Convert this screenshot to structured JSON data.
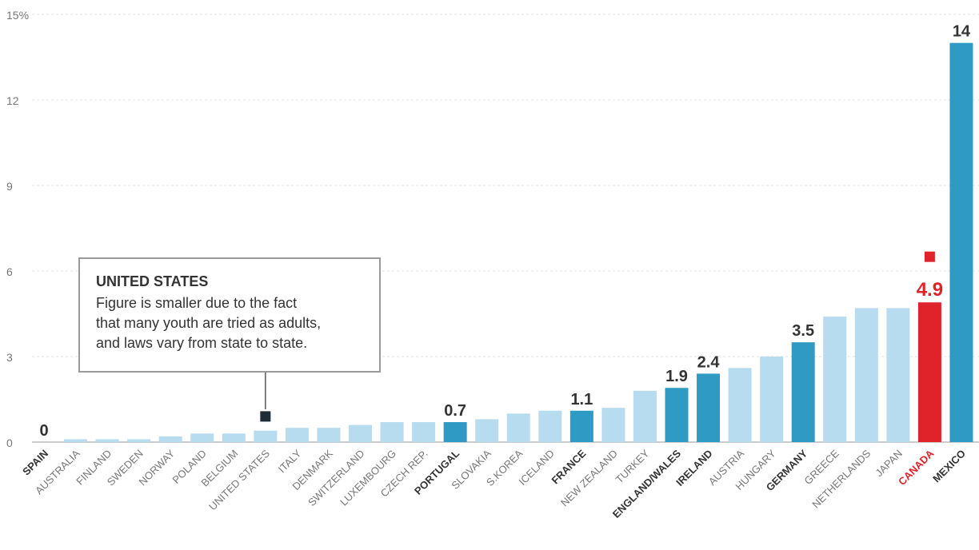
{
  "chart_data": {
    "type": "bar",
    "categories": [
      "SPAIN",
      "AUSTRALIA",
      "FINLAND",
      "SWEDEN",
      "NORWAY",
      "POLAND",
      "BELGIUM",
      "UNITED STATES",
      "ITALY",
      "DENMARK",
      "SWITZERLAND",
      "LUXEMBOURG",
      "CZECH REP.",
      "PORTUGAL",
      "SLOVAKIA",
      "S.KOREA",
      "ICELAND",
      "FRANCE",
      "NEW ZEALAND",
      "TURKEY",
      "ENGLAND/WALES",
      "IRELAND",
      "AUSTRIA",
      "HUNGARY",
      "GERMANY",
      "GREECE",
      "NETHERLANDS",
      "JAPAN",
      "CANADA",
      "MEXICO"
    ],
    "values": [
      0,
      0.1,
      0.1,
      0.1,
      0.2,
      0.3,
      0.3,
      0.4,
      0.5,
      0.5,
      0.6,
      0.7,
      0.7,
      0.7,
      0.8,
      1.0,
      1.1,
      1.1,
      1.2,
      1.8,
      1.9,
      2.4,
      2.6,
      3.0,
      3.5,
      4.4,
      4.7,
      4.7,
      4.9,
      14
    ],
    "value_labels": [
      "0",
      "",
      "",
      "",
      "",
      "",
      "",
      "",
      "",
      "",
      "",
      "",
      "",
      "0.7",
      "",
      "",
      "",
      "1.1",
      "",
      "",
      "1.9",
      "2.4",
      "",
      "",
      "3.5",
      "",
      "",
      "",
      "4.9",
      "14"
    ],
    "highlight": [
      "SPAIN",
      "PORTUGAL",
      "FRANCE",
      "ENGLAND/WALES",
      "IRELAND",
      "GERMANY",
      "MEXICO"
    ],
    "accent": "CANADA",
    "marker_points": [
      {
        "category": "UNITED STATES",
        "value": 0.9,
        "color": "#1f2d36"
      },
      {
        "category": "CANADA",
        "value": 6.5,
        "color": "#e0232b"
      }
    ],
    "y_ticks": [
      "0",
      "3",
      "6",
      "9",
      "12",
      "15%"
    ],
    "ylim": [
      0,
      15
    ],
    "grid": true,
    "colors": {
      "light": "#b8dcef",
      "highlight": "#2f9ac4",
      "accent": "#e0232b",
      "label_dark": "#333333",
      "label_light": "#777777",
      "grid": "#e2e2e2",
      "axis": "#999999"
    }
  },
  "callout": {
    "title": "UNITED STATES",
    "lines": [
      "Figure is smaller due to the fact",
      "that many youth are tried as adults,",
      "and laws vary from state to state."
    ]
  }
}
